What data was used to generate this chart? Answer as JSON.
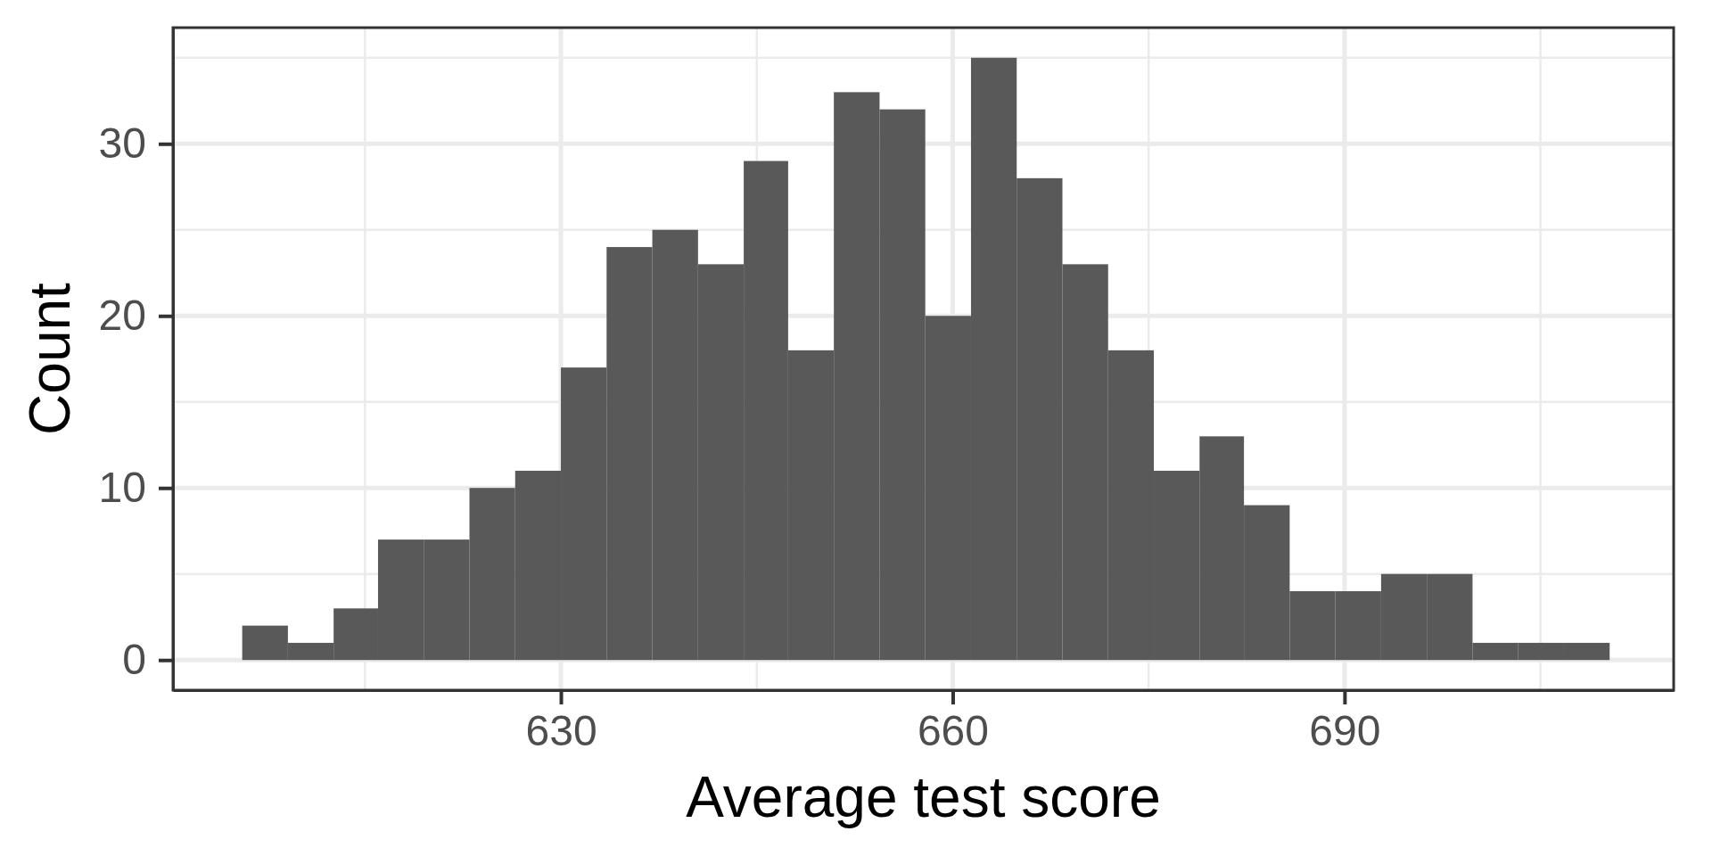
{
  "chart_data": {
    "type": "histogram",
    "xlabel": "Average test score",
    "ylabel": "Count",
    "bins": [
      605.6,
      609.1,
      612.6,
      616.0,
      619.5,
      623.0,
      626.5,
      630.0,
      633.5,
      637.0,
      640.5,
      644.0,
      647.4,
      650.9,
      654.4,
      657.9,
      661.4,
      664.9,
      668.4,
      671.9,
      675.4,
      678.9,
      682.3,
      685.8,
      689.3,
      692.8,
      696.3,
      699.8,
      703.3,
      706.8,
      710.3
    ],
    "values": [
      2,
      1,
      3,
      7,
      7,
      10,
      11,
      17,
      24,
      25,
      23,
      29,
      18,
      33,
      32,
      20,
      35,
      28,
      23,
      18,
      11,
      13,
      9,
      4,
      4,
      5,
      5,
      1,
      1,
      1
    ],
    "color": "#595959",
    "xlim": [
      600.3,
      715.2
    ],
    "ylim": [
      -1.75,
      36.75
    ],
    "xticks": [
      {
        "value": 615,
        "label": null
      },
      630,
      {
        "value": 645,
        "label": null
      },
      660,
      {
        "value": 675,
        "label": null
      },
      690,
      {
        "value": 705,
        "label": null
      }
    ],
    "yticks": [
      0,
      {
        "value": 5,
        "label": null
      },
      10,
      {
        "value": 15,
        "label": null
      },
      20,
      {
        "value": 25,
        "label": null
      },
      30,
      {
        "value": 35,
        "label": null
      }
    ],
    "grid": true
  }
}
